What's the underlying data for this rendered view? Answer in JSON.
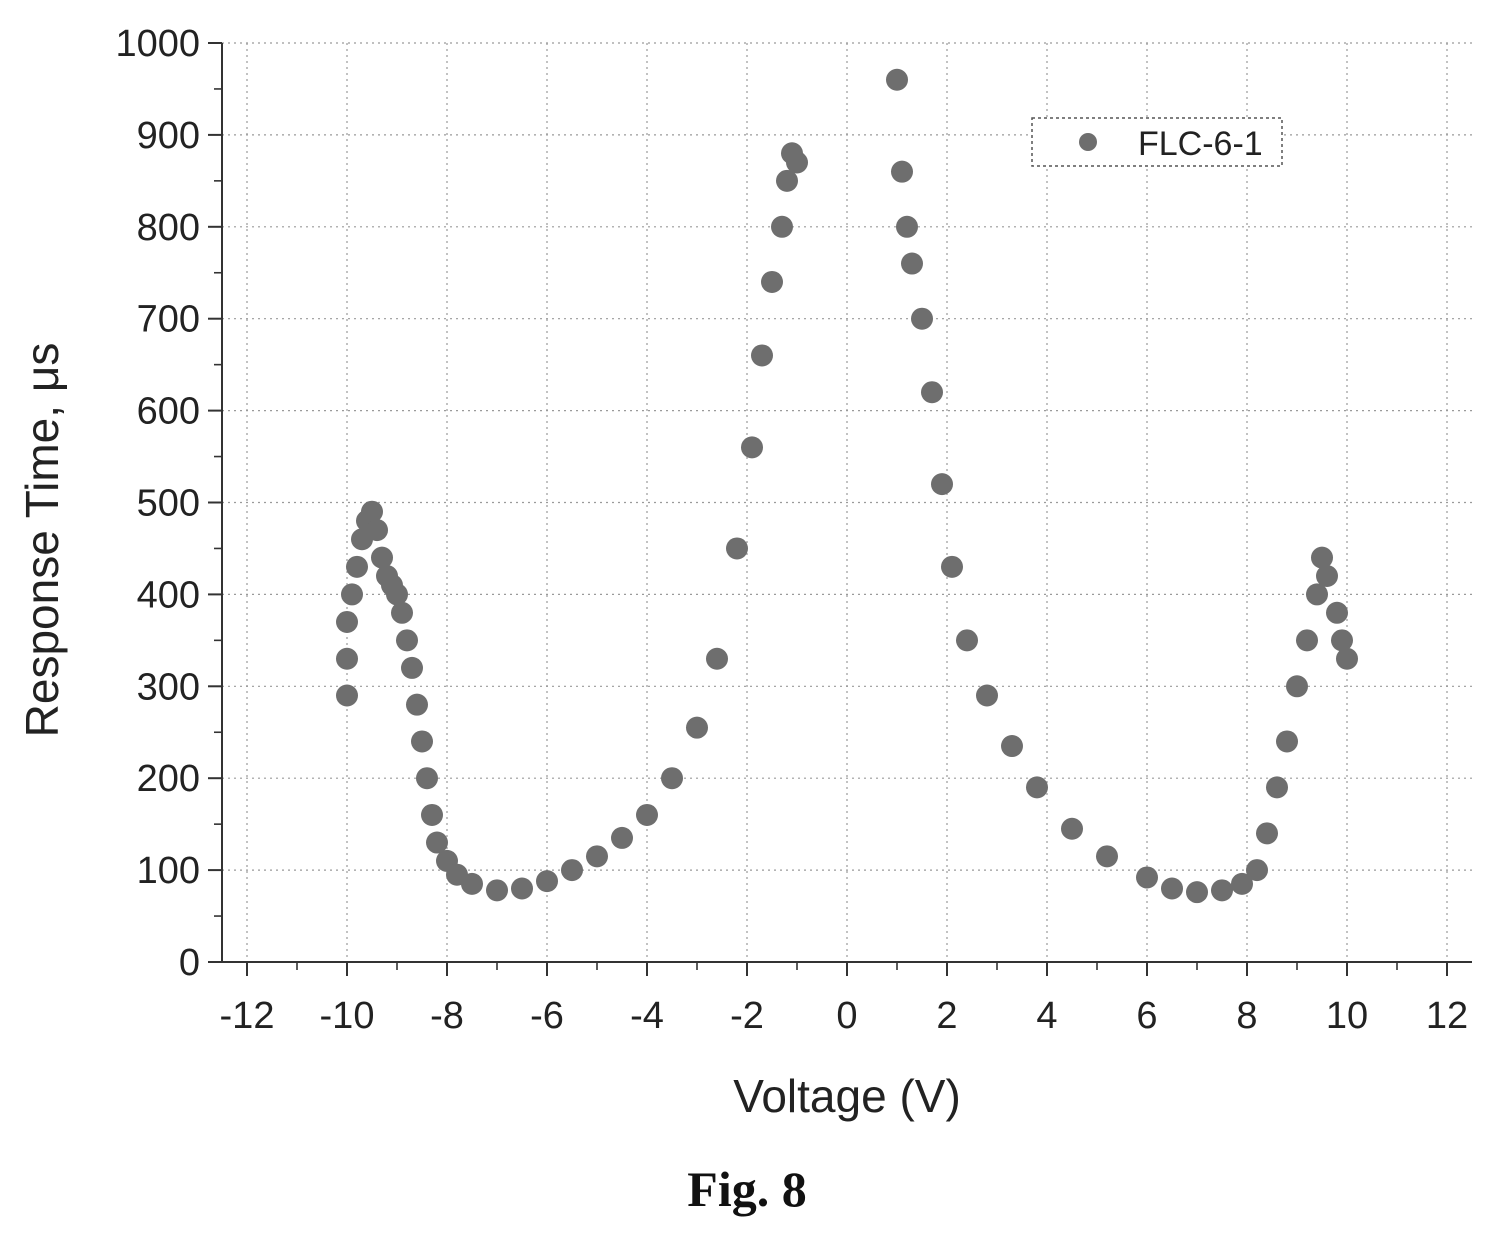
{
  "caption": "Fig. 8",
  "chart_data": {
    "type": "scatter",
    "title": "",
    "xlabel": "Voltage (V)",
    "ylabel": "Response Time, μs",
    "xlim": [
      -12.5,
      12.5
    ],
    "ylim": [
      0,
      1000
    ],
    "xticks": [
      -12,
      -10,
      -8,
      -6,
      -4,
      -2,
      0,
      2,
      4,
      6,
      8,
      10,
      12
    ],
    "xtick_labels": [
      "-12",
      "-10",
      "-8",
      "-6",
      "-4",
      "-2",
      "0",
      "2",
      "4",
      "6",
      "8",
      "10",
      "12"
    ],
    "yticks": [
      0,
      100,
      200,
      300,
      400,
      500,
      600,
      700,
      800,
      900,
      1000
    ],
    "ytick_labels": [
      "0",
      "100",
      "200",
      "300",
      "400",
      "500",
      "600",
      "700",
      "800",
      "900",
      "1000"
    ],
    "grid": true,
    "legend_position": "top-right",
    "marker_color": "#6e6e6e",
    "series": [
      {
        "name": "FLC-6-1",
        "points": [
          [
            -10.0,
            290
          ],
          [
            -10.0,
            330
          ],
          [
            -10.0,
            370
          ],
          [
            -9.9,
            400
          ],
          [
            -9.8,
            430
          ],
          [
            -9.7,
            460
          ],
          [
            -9.6,
            480
          ],
          [
            -9.5,
            490
          ],
          [
            -9.4,
            470
          ],
          [
            -9.3,
            440
          ],
          [
            -9.2,
            420
          ],
          [
            -9.1,
            410
          ],
          [
            -9.0,
            400
          ],
          [
            -8.9,
            380
          ],
          [
            -8.8,
            350
          ],
          [
            -8.7,
            320
          ],
          [
            -8.6,
            280
          ],
          [
            -8.5,
            240
          ],
          [
            -8.4,
            200
          ],
          [
            -8.3,
            160
          ],
          [
            -8.2,
            130
          ],
          [
            -8.0,
            110
          ],
          [
            -7.8,
            95
          ],
          [
            -7.5,
            85
          ],
          [
            -7.0,
            78
          ],
          [
            -6.5,
            80
          ],
          [
            -6.0,
            88
          ],
          [
            -5.5,
            100
          ],
          [
            -5.0,
            115
          ],
          [
            -4.5,
            135
          ],
          [
            -4.0,
            160
          ],
          [
            -3.5,
            200
          ],
          [
            -3.0,
            255
          ],
          [
            -2.6,
            330
          ],
          [
            -2.2,
            450
          ],
          [
            -1.9,
            560
          ],
          [
            -1.7,
            660
          ],
          [
            -1.5,
            740
          ],
          [
            -1.3,
            800
          ],
          [
            -1.2,
            850
          ],
          [
            -1.1,
            880
          ],
          [
            -1.0,
            870
          ],
          [
            1.0,
            960
          ],
          [
            1.1,
            860
          ],
          [
            1.2,
            800
          ],
          [
            1.3,
            760
          ],
          [
            1.5,
            700
          ],
          [
            1.7,
            620
          ],
          [
            1.9,
            520
          ],
          [
            2.1,
            430
          ],
          [
            2.4,
            350
          ],
          [
            2.8,
            290
          ],
          [
            3.3,
            235
          ],
          [
            3.8,
            190
          ],
          [
            4.5,
            145
          ],
          [
            5.2,
            115
          ],
          [
            6.0,
            92
          ],
          [
            6.5,
            80
          ],
          [
            7.0,
            76
          ],
          [
            7.5,
            78
          ],
          [
            7.9,
            85
          ],
          [
            8.2,
            100
          ],
          [
            8.4,
            140
          ],
          [
            8.6,
            190
          ],
          [
            8.8,
            240
          ],
          [
            9.0,
            300
          ],
          [
            9.2,
            350
          ],
          [
            9.4,
            400
          ],
          [
            9.5,
            440
          ],
          [
            9.6,
            420
          ],
          [
            9.8,
            380
          ],
          [
            9.9,
            350
          ],
          [
            10.0,
            330
          ]
        ]
      }
    ]
  }
}
